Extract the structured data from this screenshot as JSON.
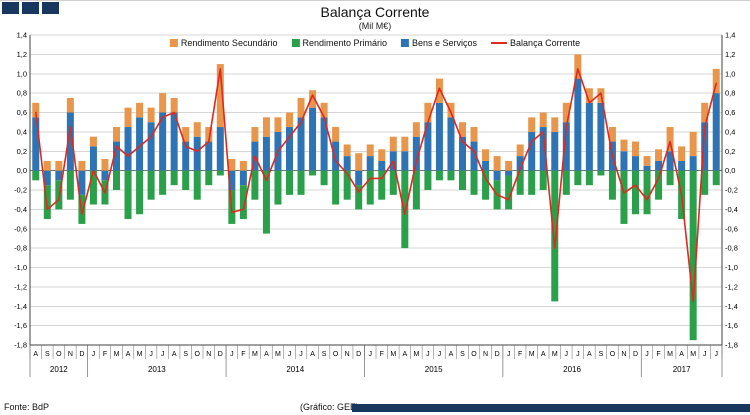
{
  "header": {
    "title": "Balança Corrente",
    "subtitle": "(Mil M€)"
  },
  "footer": {
    "source": "Fonte: BdP",
    "credit": "(Gráfico: GEE)"
  },
  "colors": {
    "brand_navy": "#17375E",
    "grid": "#d6d6d6",
    "axis": "#404040"
  },
  "chart_data": {
    "type": "bar",
    "stacked": true,
    "title": "Balança Corrente",
    "subtitle": "(Mil M€)",
    "ylim": [
      -1.8,
      1.4
    ],
    "ytick_step": 0.2,
    "grid": true,
    "legend_position": "top",
    "categories": [
      "A",
      "S",
      "O",
      "N",
      "D",
      "J",
      "F",
      "M",
      "A",
      "M",
      "J",
      "J",
      "A",
      "S",
      "O",
      "N",
      "D",
      "J",
      "F",
      "M",
      "A",
      "M",
      "J",
      "J",
      "A",
      "S",
      "O",
      "N",
      "D",
      "J",
      "F",
      "M",
      "A",
      "M",
      "J",
      "J",
      "A",
      "S",
      "O",
      "N",
      "D",
      "J",
      "F",
      "M",
      "A",
      "M",
      "J",
      "J",
      "A",
      "S",
      "O",
      "N",
      "D",
      "J",
      "F",
      "M",
      "A",
      "M",
      "J",
      "J"
    ],
    "year_groups": [
      {
        "label": "2012",
        "count": 5
      },
      {
        "label": "2013",
        "count": 12
      },
      {
        "label": "2014",
        "count": 12
      },
      {
        "label": "2015",
        "count": 12
      },
      {
        "label": "2016",
        "count": 12
      },
      {
        "label": "2017",
        "count": 7
      }
    ],
    "series": [
      {
        "name": "Rendimento Secundário",
        "type": "bar",
        "color": "#E8964B",
        "values": [
          0.15,
          0.1,
          0.1,
          0.15,
          0.1,
          0.1,
          0.12,
          0.15,
          0.2,
          0.15,
          0.15,
          0.2,
          0.15,
          0.15,
          0.15,
          0.15,
          0.65,
          0.12,
          0.1,
          0.15,
          0.2,
          0.15,
          0.15,
          0.2,
          0.18,
          0.15,
          0.15,
          0.12,
          0.18,
          0.12,
          0.12,
          0.15,
          0.15,
          0.15,
          0.2,
          0.25,
          0.15,
          0.15,
          0.15,
          0.12,
          0.15,
          0.1,
          0.12,
          0.15,
          0.15,
          0.15,
          0.2,
          0.25,
          0.15,
          0.15,
          0.15,
          0.12,
          0.15,
          0.1,
          0.12,
          0.25,
          0.15,
          0.25,
          0.2,
          0.25
        ]
      },
      {
        "name": "Rendimento Primário",
        "type": "bar",
        "color": "#2BA04A",
        "values": [
          -0.1,
          -0.35,
          -0.3,
          -0.3,
          -0.3,
          -0.35,
          -0.25,
          -0.2,
          -0.5,
          -0.45,
          -0.3,
          -0.25,
          -0.15,
          -0.2,
          -0.3,
          -0.15,
          -0.05,
          -0.35,
          -0.35,
          -0.3,
          -0.65,
          -0.35,
          -0.25,
          -0.25,
          -0.05,
          -0.15,
          -0.35,
          -0.3,
          -0.25,
          -0.35,
          -0.3,
          -0.25,
          -0.8,
          -0.4,
          -0.2,
          -0.1,
          -0.1,
          -0.2,
          -0.25,
          -0.3,
          -0.3,
          -0.35,
          -0.25,
          -0.25,
          -0.2,
          -1.35,
          -0.25,
          -0.15,
          -0.15,
          -0.05,
          -0.3,
          -0.55,
          -0.45,
          -0.45,
          -0.3,
          -0.15,
          -0.5,
          -1.75,
          -0.25,
          -0.15
        ]
      },
      {
        "name": "Bens e Serviços",
        "type": "bar",
        "color": "#2E74B5",
        "values": [
          0.55,
          -0.15,
          -0.1,
          0.6,
          -0.25,
          0.25,
          -0.1,
          0.3,
          0.45,
          0.55,
          0.5,
          0.6,
          0.6,
          0.3,
          0.35,
          0.3,
          0.45,
          -0.2,
          -0.15,
          0.3,
          0.35,
          0.4,
          0.45,
          0.55,
          0.65,
          0.55,
          0.3,
          0.15,
          -0.15,
          0.15,
          0.1,
          0.2,
          0.2,
          0.35,
          0.5,
          0.7,
          0.55,
          0.35,
          0.3,
          0.1,
          -0.1,
          -0.05,
          0.15,
          0.4,
          0.45,
          0.4,
          0.5,
          0.95,
          0.7,
          0.7,
          0.3,
          0.2,
          0.15,
          0.05,
          0.1,
          0.2,
          0.1,
          0.15,
          0.5,
          0.8
        ]
      },
      {
        "name": "Balança Corrente",
        "type": "line",
        "color": "#E0281E",
        "values": [
          0.6,
          -0.4,
          -0.3,
          0.45,
          -0.45,
          0.0,
          -0.23,
          0.25,
          0.15,
          0.25,
          0.35,
          0.55,
          0.6,
          0.25,
          0.2,
          0.3,
          1.05,
          -0.43,
          -0.4,
          0.15,
          -0.1,
          0.2,
          0.35,
          0.5,
          0.78,
          0.55,
          0.1,
          -0.03,
          -0.22,
          -0.08,
          -0.08,
          0.1,
          -0.45,
          0.1,
          0.5,
          0.85,
          0.6,
          0.3,
          0.2,
          -0.08,
          -0.25,
          -0.3,
          0.02,
          0.3,
          0.4,
          -0.8,
          0.45,
          1.05,
          0.7,
          0.8,
          0.15,
          -0.23,
          -0.15,
          -0.3,
          -0.08,
          0.3,
          -0.25,
          -1.35,
          0.45,
          0.9
        ]
      }
    ]
  }
}
